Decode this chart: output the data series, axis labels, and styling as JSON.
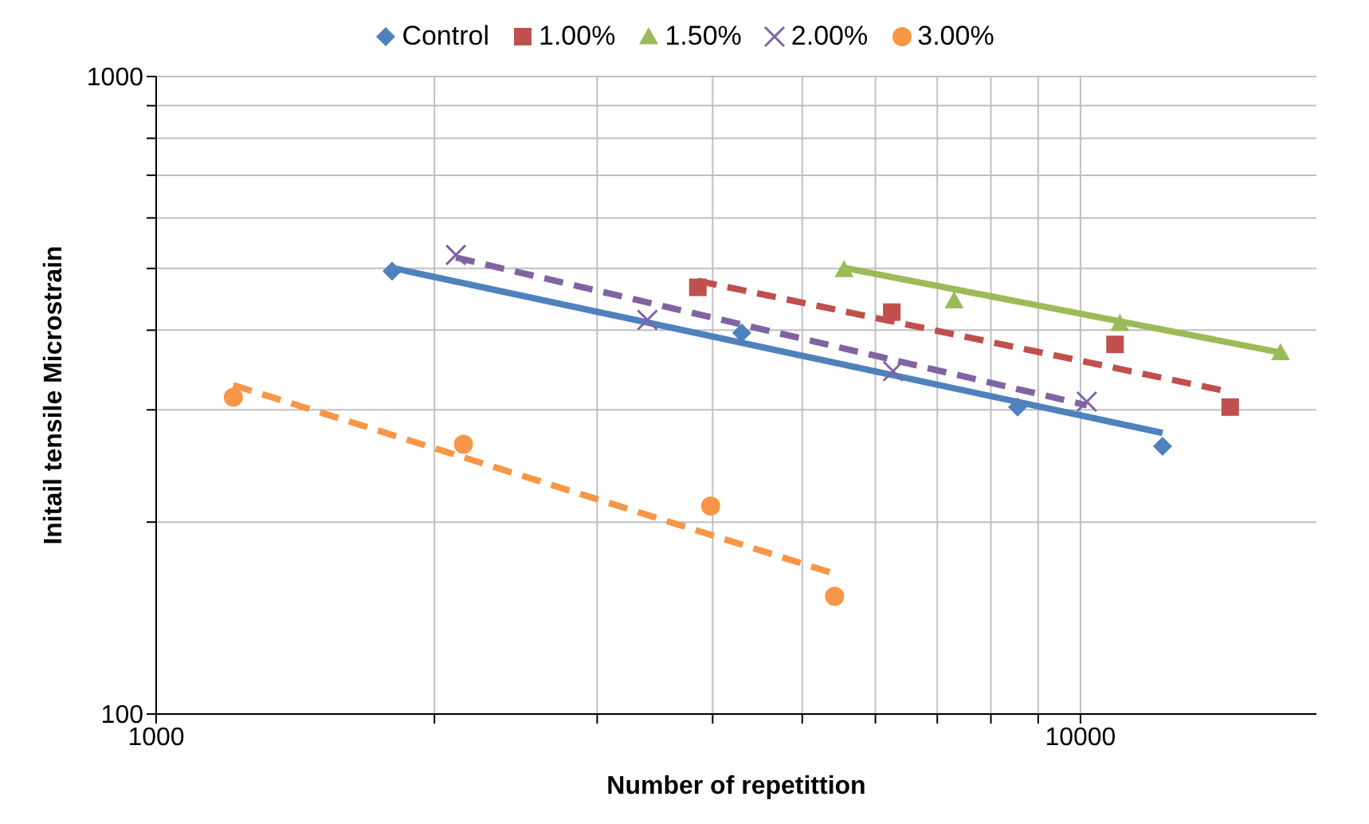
{
  "chart_data": {
    "type": "scatter",
    "xlabel": "Number of repetittion",
    "ylabel": "Initail tensile Microstrain",
    "log": "xy",
    "grid": true,
    "legend": "top",
    "xlim": [
      1000,
      18000
    ],
    "xticks": [
      1000,
      {
        "value": 2000,
        "label": null
      },
      {
        "value": 3000,
        "label": null
      },
      {
        "value": 4000,
        "label": null
      },
      {
        "value": 5000,
        "label": null
      },
      {
        "value": 6000,
        "label": null
      },
      {
        "value": 7000,
        "label": null
      },
      {
        "value": 8000,
        "label": null
      },
      {
        "value": 9000,
        "label": null
      },
      10000
    ],
    "ylim": [
      100,
      1000
    ],
    "yticks": [
      100,
      {
        "value": 200,
        "label": null
      },
      {
        "value": 300,
        "label": null
      },
      {
        "value": 400,
        "label": null
      },
      {
        "value": 500,
        "label": null
      },
      {
        "value": 600,
        "label": null
      },
      {
        "value": 700,
        "label": null
      },
      {
        "value": 800,
        "label": null
      },
      {
        "value": 900,
        "label": null
      },
      1000
    ],
    "series": [
      {
        "type": "scatter",
        "name": "Control",
        "color": "#4f81bd",
        "marker": "diamond",
        "x": [
          1800,
          4300,
          8550,
          12270
        ],
        "values": [
          495,
          396,
          303,
          263
        ]
      },
      {
        "type": "scatter",
        "name": "1.00%",
        "color": "#c0504d",
        "marker": "square",
        "x": [
          3855,
          6250,
          10900,
          14520
        ],
        "values": [
          467,
          427,
          380,
          303
        ]
      },
      {
        "type": "scatter",
        "name": "1.50%",
        "color": "#9bbb59",
        "marker": "triangle",
        "x": [
          5550,
          7300,
          11030,
          16460
        ],
        "values": [
          498,
          445,
          410,
          369
        ]
      },
      {
        "type": "scatter",
        "name": "2.00%",
        "color": "#8064a2",
        "marker": "cross",
        "x": [
          2110,
          3400,
          6270,
          10160
        ],
        "values": [
          525,
          415,
          345,
          309
        ]
      },
      {
        "type": "scatter",
        "name": "3.00%",
        "color": "#f79646",
        "marker": "circle",
        "x": [
          1212,
          2150,
          3980,
          5420
        ],
        "values": [
          314,
          265,
          212,
          153
        ]
      },
      {
        "type": "line",
        "color": "#4f81bd",
        "line_style": "solid",
        "marker": "none",
        "x": [
          1800,
          12270
        ],
        "values": [
          501,
          276
        ]
      },
      {
        "type": "line",
        "color": "#c0504d",
        "line_style": "dashed",
        "marker": "none",
        "x": [
          3855,
          14520
        ],
        "values": [
          478,
          320
        ]
      },
      {
        "type": "line",
        "color": "#9bbb59",
        "line_style": "solid",
        "marker": "none",
        "x": [
          5550,
          16460
        ],
        "values": [
          501,
          369
        ]
      },
      {
        "type": "line",
        "color": "#8064a2",
        "line_style": "dashed",
        "marker": "none",
        "x": [
          2110,
          10160
        ],
        "values": [
          520,
          305
        ]
      },
      {
        "type": "line",
        "color": "#f79646",
        "line_style": "dashed",
        "marker": "none",
        "x": [
          1212,
          5420
        ],
        "values": [
          328,
          166
        ]
      }
    ]
  }
}
